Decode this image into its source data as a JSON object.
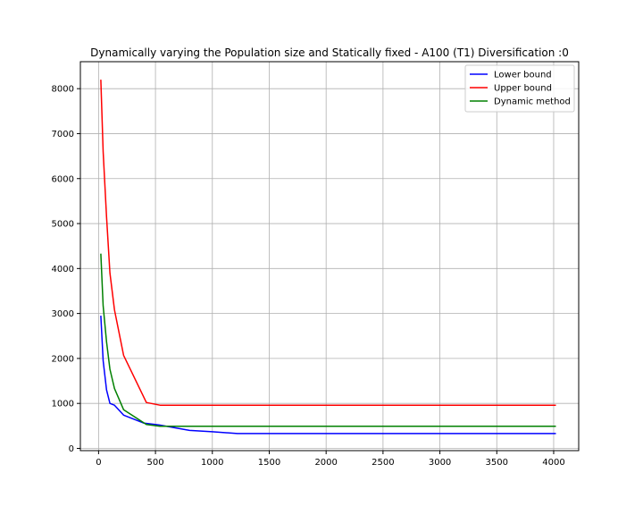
{
  "chart_data": {
    "type": "line",
    "title": "Dynamically varying the Population size and Statically fixed - A100 (T1) Diversification :0",
    "xlabel": "",
    "ylabel": "",
    "xlim": [
      -160,
      4220
    ],
    "ylim": [
      -50,
      8600
    ],
    "xticks": [
      0,
      500,
      1000,
      1500,
      2000,
      2500,
      3000,
      3500,
      4000
    ],
    "yticks": [
      0,
      1000,
      2000,
      3000,
      4000,
      5000,
      6000,
      7000,
      8000
    ],
    "grid": true,
    "legend": "top-right",
    "series": [
      {
        "name": "Lower bound",
        "color": "#0000ff",
        "x": [
          20,
          40,
          70,
          100,
          140,
          220,
          400,
          530,
          800,
          1000,
          1220,
          4020
        ],
        "y": [
          2950,
          1950,
          1300,
          1000,
          960,
          740,
          560,
          520,
          400,
          370,
          330,
          330
        ]
      },
      {
        "name": "Upper bound",
        "color": "#ff0000",
        "x": [
          20,
          40,
          70,
          100,
          140,
          220,
          420,
          540,
          4020
        ],
        "y": [
          8200,
          6600,
          5150,
          3900,
          3080,
          2070,
          1020,
          960,
          960
        ]
      },
      {
        "name": "Dynamic method",
        "color": "#008000",
        "x": [
          20,
          40,
          70,
          100,
          140,
          220,
          420,
          540,
          4020
        ],
        "y": [
          4330,
          3170,
          2370,
          1760,
          1330,
          860,
          530,
          490,
          490
        ]
      }
    ]
  }
}
